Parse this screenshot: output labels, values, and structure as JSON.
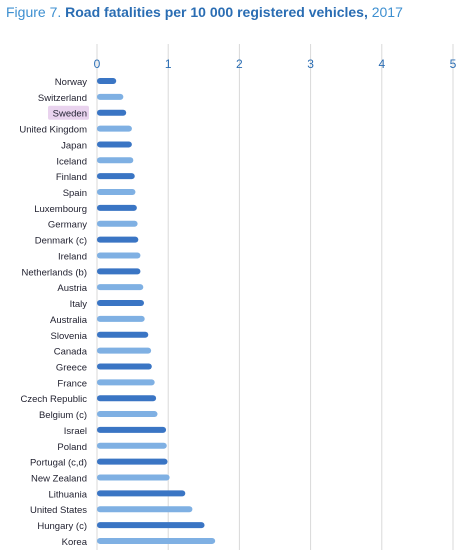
{
  "figure": {
    "label": "Figure 7.",
    "title": "Road fatalities per 10 000 registered vehicles,",
    "year": "2017"
  },
  "chart_data": {
    "type": "bar",
    "orientation": "horizontal",
    "xlim": [
      0,
      5
    ],
    "x_ticks": [
      "0",
      "1",
      "2",
      "3",
      "4",
      "5"
    ],
    "x_axis_position": "top",
    "grid": true,
    "highlighted_category": "Sweden",
    "colors": {
      "dark": "#3a75c4",
      "light": "#7fb0e3",
      "highlight": "#e9d3ee",
      "grid": "#d9d9d9"
    },
    "categories": [
      "Norway",
      "Switzerland",
      "Sweden",
      "United Kingdom",
      "Japan",
      "Iceland",
      "Finland",
      "Spain",
      "Luxembourg",
      "Germany",
      "Denmark (c)",
      "Ireland",
      "Netherlands (b)",
      "Austria",
      "Italy",
      "Australia",
      "Slovenia",
      "Canada",
      "Greece",
      "France",
      "Czech Republic",
      "Belgium (c)",
      "Israel",
      "Poland",
      "Portugal (c,d)",
      "New Zealand",
      "Lithuania",
      "United States",
      "Hungary (c)",
      "Korea"
    ],
    "values": [
      0.27,
      0.37,
      0.41,
      0.49,
      0.49,
      0.51,
      0.53,
      0.54,
      0.56,
      0.57,
      0.58,
      0.61,
      0.61,
      0.65,
      0.66,
      0.67,
      0.72,
      0.76,
      0.77,
      0.81,
      0.83,
      0.85,
      0.97,
      0.98,
      0.99,
      1.02,
      1.24,
      1.34,
      1.51,
      1.66
    ]
  }
}
